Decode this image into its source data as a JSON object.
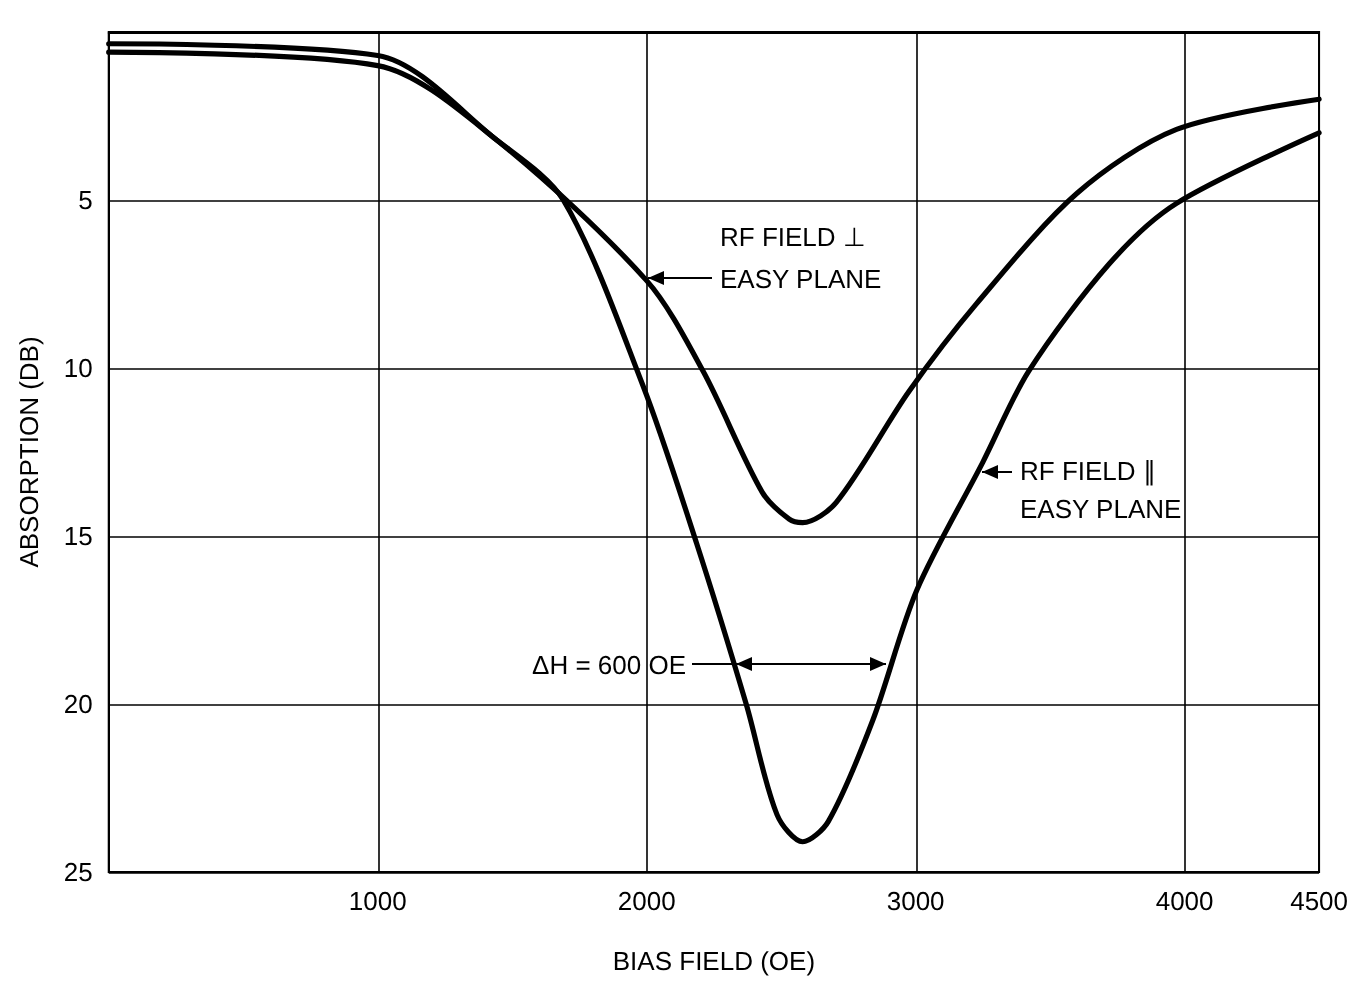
{
  "chart_data": {
    "type": "line",
    "xlabel": "BIAS FIELD (OE)",
    "ylabel": "ABSORPTION (DB)",
    "xlim": [
      0,
      4500
    ],
    "xticks": [
      1000,
      2000,
      3000,
      4000,
      4500
    ],
    "ylim": [
      25,
      0
    ],
    "yticks": [
      5,
      10,
      15,
      20,
      25
    ],
    "grid": true,
    "marker": "none",
    "line_style": "solid",
    "series": [
      {
        "color": "#000000",
        "x": [
          0,
          1000,
          1440,
          2000,
          2210,
          2430,
          2530,
          2580,
          2705,
          2975,
          3225,
          3600,
          3970,
          4500
        ],
        "values": [
          0.6,
          1.0,
          3.2,
          7.4,
          10.1,
          13.7,
          14.5,
          14.6,
          14.0,
          10.7,
          8.1,
          4.8,
          2.9,
          2.0
        ]
      },
      {
        "color": "#000000",
        "x": [
          0,
          1000,
          1440,
          1690,
          1985,
          2185,
          2370,
          2485,
          2580,
          2675,
          2840,
          3005,
          3250,
          3420,
          3720,
          3970,
          4500
        ],
        "values": [
          0.35,
          0.7,
          3.2,
          5.0,
          10.5,
          15.2,
          20.0,
          23.3,
          24.1,
          23.5,
          20.5,
          16.6,
          12.8,
          10.1,
          6.9,
          5.1,
          3.0
        ]
      }
    ],
    "annotations": [
      "RF FIELD ⊥\nEASY PLANE",
      "RF FIELD ∥\nEASY PLANE",
      "ΔH = 600 OE"
    ]
  }
}
